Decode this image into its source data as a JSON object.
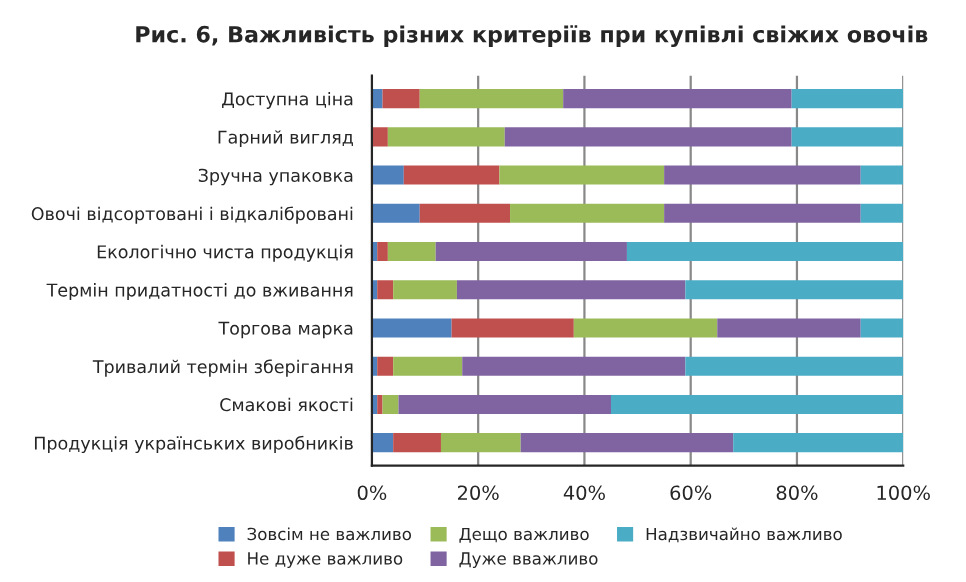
{
  "chart_data": {
    "type": "bar",
    "orientation": "horizontal",
    "stacked": true,
    "title": "Рис. 6, Важливість різних критеріїв при купівлі свіжих овочів",
    "categories": [
      "Доступна ціна",
      "Гарний вигляд",
      "Зручна упаковка",
      "Овочі відсортовані і відкалібровані",
      "Екологічно чиста продукція",
      "Термін придатності до вживання",
      "Торгова марка",
      "Тривалий термін зберігання",
      "Смакові якості",
      "Продукція українських виробників"
    ],
    "series": [
      {
        "name": "Зовсім не важливо",
        "color": "#4f81bd",
        "values": [
          2,
          0,
          6,
          9,
          1,
          1,
          15,
          1,
          1,
          4
        ]
      },
      {
        "name": "Не дуже важливо",
        "color": "#c0504d",
        "values": [
          7,
          3,
          18,
          17,
          2,
          3,
          23,
          3,
          1,
          9
        ]
      },
      {
        "name": "Дещо важливо",
        "color": "#9bbb59",
        "values": [
          27,
          22,
          31,
          29,
          9,
          12,
          27,
          13,
          3,
          15
        ]
      },
      {
        "name": "Дуже вважливо",
        "color": "#8064a2",
        "values": [
          43,
          54,
          37,
          37,
          36,
          43,
          27,
          42,
          40,
          40
        ]
      },
      {
        "name": "Надзвичайно важливо",
        "color": "#4bacc6",
        "values": [
          21,
          21,
          8,
          8,
          52,
          41,
          8,
          41,
          55,
          32
        ]
      }
    ],
    "xlim": [
      0,
      100
    ],
    "xticks": [
      {
        "value": 0,
        "label": "0%"
      },
      {
        "value": 20,
        "label": "20%"
      },
      {
        "value": 40,
        "label": "40%"
      },
      {
        "value": 60,
        "label": "60%"
      },
      {
        "value": 80,
        "label": "80%"
      },
      {
        "value": 100,
        "label": "100%"
      }
    ],
    "grid": "x",
    "legend": "bottom"
  }
}
